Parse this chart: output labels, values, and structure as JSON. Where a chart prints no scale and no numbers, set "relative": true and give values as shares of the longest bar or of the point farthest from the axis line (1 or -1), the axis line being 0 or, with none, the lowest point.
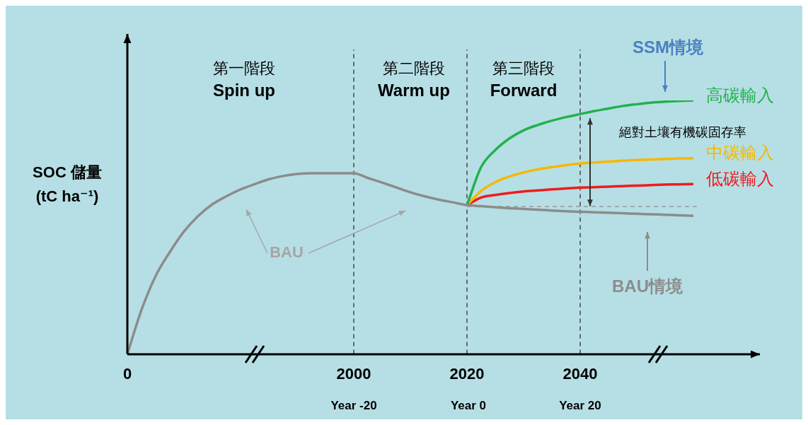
{
  "chart_data": {
    "type": "line",
    "relative": true,
    "ylabel": "SOC 儲量 (tC ha⁻¹)",
    "marker": "none",
    "legend": false,
    "grid": false,
    "categories": [
      "0",
      null,
      null,
      null,
      null,
      null,
      null,
      null,
      null,
      null,
      null,
      null,
      null,
      null,
      null,
      null,
      "2000",
      null,
      null,
      null,
      null,
      null,
      null,
      null,
      "2020",
      null,
      null,
      null,
      null,
      null,
      null,
      null,
      "2040",
      null,
      null,
      null,
      null,
      null,
      null,
      null,
      null
    ],
    "series": [
      {
        "color": "#8c8c8c",
        "values": [
          0,
          0.174,
          0.308,
          0.402,
          0.483,
          0.544,
          0.59,
          0.622,
          0.649,
          0.67,
          0.689,
          0.702,
          0.71,
          0.713,
          0.713,
          0.713,
          0.713,
          0.694,
          0.676,
          0.657,
          0.638,
          0.622,
          0.609,
          0.598,
          0.587,
          0.583,
          0.579,
          0.575,
          0.572,
          0.569,
          0.566,
          0.563,
          0.561,
          0.559,
          0.557,
          0.555,
          0.553,
          0.551,
          0.549,
          0.547,
          0.545
        ]
      },
      {
        "name": "高碳輸入",
        "color": "#22b14c",
        "values": [
          null,
          null,
          null,
          null,
          null,
          null,
          null,
          null,
          null,
          null,
          null,
          null,
          null,
          null,
          null,
          null,
          null,
          null,
          null,
          null,
          null,
          null,
          null,
          null,
          0.587,
          0.737,
          0.804,
          0.85,
          0.882,
          0.903,
          0.92,
          0.934,
          0.946,
          0.958,
          0.968,
          0.978,
          0.985,
          0.991,
          0.995,
          0.998,
          1
        ]
      },
      {
        "name": "中碳輸入",
        "color": "#f5b800",
        "values": [
          null,
          null,
          null,
          null,
          null,
          null,
          null,
          null,
          null,
          null,
          null,
          null,
          null,
          null,
          null,
          null,
          null,
          null,
          null,
          null,
          null,
          null,
          null,
          null,
          0.587,
          0.643,
          0.678,
          0.7,
          0.716,
          0.728,
          0.737,
          0.745,
          0.751,
          0.755,
          0.759,
          0.762,
          0.765,
          0.767,
          0.769,
          0.771,
          0.772
        ]
      },
      {
        "name": "低碳輸入",
        "color": "#ee1c1c",
        "values": [
          null,
          null,
          null,
          null,
          null,
          null,
          null,
          null,
          null,
          null,
          null,
          null,
          null,
          null,
          null,
          null,
          null,
          null,
          null,
          null,
          null,
          null,
          null,
          null,
          0.587,
          0.617,
          0.627,
          0.635,
          0.641,
          0.645,
          0.649,
          0.653,
          0.656,
          0.658,
          0.66,
          0.662,
          0.664,
          0.666,
          0.668,
          0.669,
          0.67
        ]
      }
    ],
    "ref_lines": [
      {
        "axis": "x",
        "value": "2000",
        "color": "#444444",
        "line_style": "dashed"
      },
      {
        "axis": "x",
        "value": "2020",
        "color": "#444444",
        "line_style": "dashed"
      },
      {
        "axis": "x",
        "value": "2040",
        "color": "#444444",
        "line_style": "dashed"
      },
      {
        "axis": "y",
        "value": 0.582,
        "color": "#999999",
        "line_style": "dashed"
      }
    ],
    "annotations": [
      "第一階段",
      "Spin up",
      "第二階段",
      "Warm up",
      "第三階段",
      "Forward",
      "BAU",
      "BAU情境",
      "SSM情境",
      "絕對土壤有機碳固存率",
      "Year -20",
      "Year 0",
      "Year 20"
    ]
  }
}
